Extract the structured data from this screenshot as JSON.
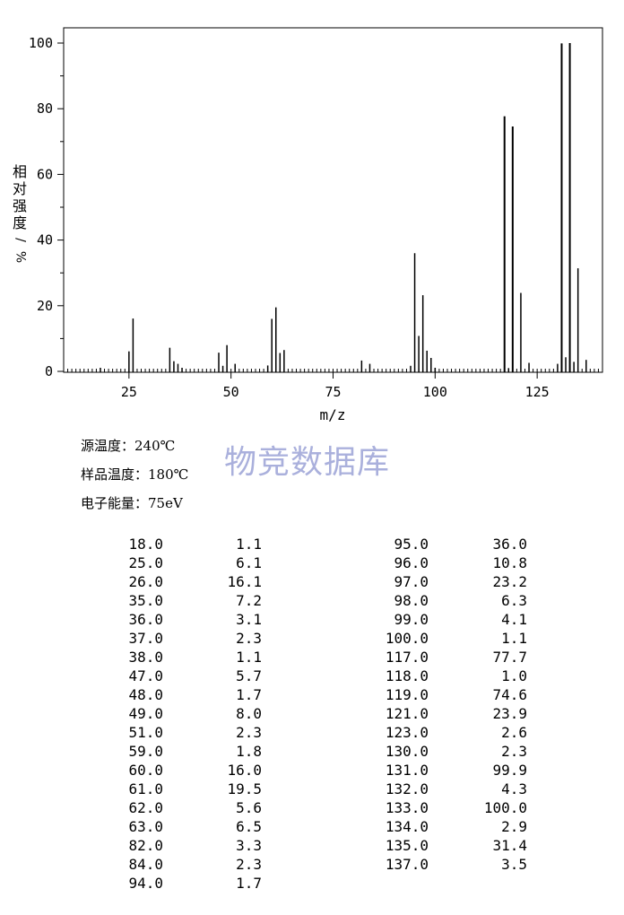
{
  "chart_data": {
    "type": "bar",
    "xlabel": "m/z",
    "ylabel": "相对强度/%",
    "xlim": [
      9,
      141
    ],
    "ylim": [
      0,
      100
    ],
    "xticks": [
      25,
      50,
      75,
      100,
      125
    ],
    "yticks": [
      0,
      20,
      40,
      60,
      80,
      100
    ],
    "x": [
      18,
      25,
      26,
      35,
      36,
      37,
      38,
      47,
      48,
      49,
      51,
      59,
      60,
      61,
      62,
      63,
      82,
      84,
      94,
      95,
      96,
      97,
      98,
      99,
      100,
      117,
      118,
      119,
      121,
      123,
      130,
      131,
      132,
      133,
      134,
      135,
      137
    ],
    "values": [
      1.1,
      6.1,
      16.1,
      7.2,
      3.1,
      2.3,
      1.1,
      5.7,
      1.7,
      8.0,
      2.3,
      1.8,
      16.0,
      19.5,
      5.6,
      6.5,
      3.3,
      2.3,
      1.7,
      36.0,
      10.8,
      23.2,
      6.3,
      4.1,
      1.1,
      77.7,
      1.0,
      74.6,
      23.9,
      2.6,
      2.3,
      99.9,
      4.3,
      100.0,
      2.9,
      31.4,
      3.5
    ]
  },
  "info": {
    "source_temp": "源温度：240℃",
    "sample_temp": "样品温度：180℃",
    "electron_energy": "电子能量：75eV"
  },
  "watermark": "物竞数据库",
  "table": {
    "left": [
      [
        "18.0",
        "1.1"
      ],
      [
        "25.0",
        "6.1"
      ],
      [
        "26.0",
        "16.1"
      ],
      [
        "35.0",
        "7.2"
      ],
      [
        "36.0",
        "3.1"
      ],
      [
        "37.0",
        "2.3"
      ],
      [
        "38.0",
        "1.1"
      ],
      [
        "47.0",
        "5.7"
      ],
      [
        "48.0",
        "1.7"
      ],
      [
        "49.0",
        "8.0"
      ],
      [
        "51.0",
        "2.3"
      ],
      [
        "59.0",
        "1.8"
      ],
      [
        "60.0",
        "16.0"
      ],
      [
        "61.0",
        "19.5"
      ],
      [
        "62.0",
        "5.6"
      ],
      [
        "63.0",
        "6.5"
      ],
      [
        "82.0",
        "3.3"
      ],
      [
        "84.0",
        "2.3"
      ],
      [
        "94.0",
        "1.7"
      ]
    ],
    "right": [
      [
        "95.0",
        "36.0"
      ],
      [
        "96.0",
        "10.8"
      ],
      [
        "97.0",
        "23.2"
      ],
      [
        "98.0",
        "6.3"
      ],
      [
        "99.0",
        "4.1"
      ],
      [
        "100.0",
        "1.1"
      ],
      [
        "117.0",
        "77.7"
      ],
      [
        "118.0",
        "1.0"
      ],
      [
        "119.0",
        "74.6"
      ],
      [
        "121.0",
        "23.9"
      ],
      [
        "123.0",
        "2.6"
      ],
      [
        "130.0",
        "2.3"
      ],
      [
        "131.0",
        "99.9"
      ],
      [
        "132.0",
        "4.3"
      ],
      [
        "133.0",
        "100.0"
      ],
      [
        "134.0",
        "2.9"
      ],
      [
        "135.0",
        "31.4"
      ],
      [
        "137.0",
        "3.5"
      ]
    ]
  }
}
